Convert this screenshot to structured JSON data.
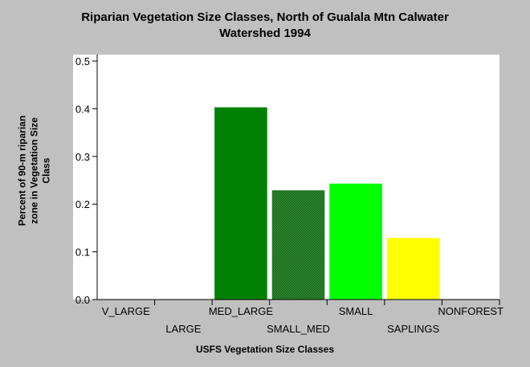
{
  "chart_data": {
    "type": "bar",
    "title_line1": "Riparian Vegetation Size Classes, North of Gualala Mtn Calwater",
    "title_line2": "Watershed 1994",
    "ylabel_line1": "Percent of 90-m riparian",
    "ylabel_line2": "zone in Vegetation Size",
    "ylabel_line3": "Class",
    "xlabel": "USFS Vegetation Size Classes",
    "categories": [
      "V_LARGE",
      "LARGE",
      "MED_LARGE",
      "SMALL_MED",
      "SMALL",
      "SAPLINGS",
      "NONFOREST"
    ],
    "values": [
      0,
      0,
      0.403,
      0.229,
      0.243,
      0.129,
      0
    ],
    "colors": [
      "#008000",
      "#008000",
      "#008000",
      "#2e8b2e",
      "#00ff00",
      "#ffff00",
      "#c0c0c0"
    ],
    "patterns": [
      "solid",
      "solid",
      "solid",
      "hatch",
      "solid",
      "solid",
      "solid"
    ],
    "ylim": [
      0,
      0.5
    ],
    "yticks": [
      "0.0",
      "0.1",
      "0.2",
      "0.3",
      "0.4",
      "0.5"
    ],
    "grid": false,
    "plot_background": "#ffffff",
    "page_background": "#c0c0c0"
  }
}
